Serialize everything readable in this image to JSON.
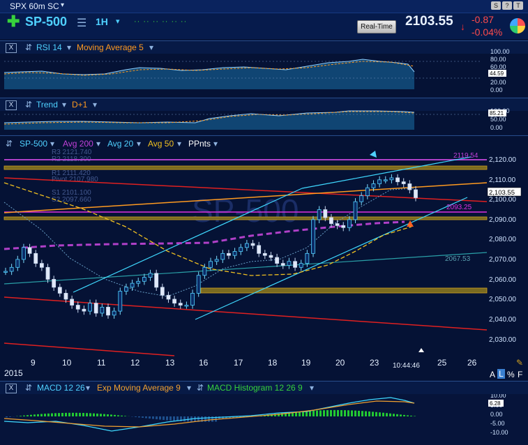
{
  "toolbar": {
    "title": "SPX 60m SC",
    "window_buttons": [
      "S",
      "?",
      "T"
    ]
  },
  "header": {
    "symbol": "SP-500",
    "timeframe": "1H",
    "realtime_label": "Real-Time",
    "last_price": "2103.55",
    "change": "-0.87",
    "change_pct": "-0.04%"
  },
  "rsi_panel": {
    "close": "X",
    "study": "RSI 14",
    "overlay": "Moving Average 5",
    "axis_labels": [
      "100.00",
      "80.00",
      "60.00",
      "40.00",
      "20.00",
      "0.00"
    ],
    "value_badge": "44.59"
  },
  "trend_panel": {
    "close": "X",
    "study": "Trend",
    "overlay": "D+1",
    "axis_labels": [
      "100.00",
      "50.00",
      "0.00"
    ],
    "value_badge": "85.21"
  },
  "main_panel": {
    "series_label": "SP-500",
    "overlays": [
      "Avg 200",
      "Avg 20",
      "Avg 50",
      "PPnts"
    ],
    "pivot_labels": [
      "R3 2121.740",
      "R2 2118.300",
      "R1 2111.420",
      "Pivot 2107.980",
      "S1 2101.100",
      "S2 2097.660"
    ],
    "level_labels": [
      "2119.54",
      "2093.25",
      "2067.53"
    ],
    "watermark": "SP-500",
    "axis_labels": [
      "2,120.00",
      "2,110.00",
      "2,100.00",
      "2,090.00",
      "2,080.00",
      "2,070.00",
      "2,060.00",
      "2,050.00",
      "2,040.00",
      "2,030.00"
    ],
    "price_badge": "2,103.55"
  },
  "xaxis": {
    "dates": [
      "9",
      "10",
      "11",
      "12",
      "13",
      "16",
      "17",
      "18",
      "19",
      "20",
      "23",
      "25",
      "26"
    ],
    "year": "2015",
    "time": "10:44:46",
    "scale_buttons": [
      "A",
      "L",
      "%",
      "F"
    ]
  },
  "macd_panel": {
    "close": "X",
    "study": "MACD 12 26",
    "overlay1": "Exp Moving Average 9",
    "overlay2": "MACD Histogram 12 26 9",
    "axis_labels": [
      "10.00",
      "5.00",
      "0.00",
      "-5.00",
      "-10.00"
    ],
    "value_badge": "6.28"
  },
  "colors": {
    "background": "#051235",
    "up_candle": "#4fd1ff",
    "channel": "#3fd9ff",
    "avg200": "#b040c8",
    "avg50": "#f0c020",
    "pivot_red": "#e02020",
    "orange_line": "#ff9a20",
    "magenta_line": "#e030e0",
    "macd": "#3fd9ff",
    "signal": "#f0a030",
    "histogram": "#22c832",
    "negative": "#ff4b4b"
  },
  "chart_data": {
    "type": "candlestick",
    "ylim": [
      2025,
      2127
    ],
    "close_series_points": [
      2066,
      2068,
      2072,
      2078,
      2075,
      2070,
      2068,
      2062,
      2058,
      2055,
      2052,
      2049,
      2047,
      2046,
      2050,
      2045,
      2048,
      2044,
      2046,
      2056,
      2058,
      2060,
      2061,
      2063,
      2065,
      2058,
      2054,
      2052,
      2050,
      2049,
      2049,
      2055,
      2064,
      2068,
      2071,
      2072,
      2075,
      2074,
      2076,
      2078,
      2080,
      2079,
      2075,
      2074,
      2073,
      2070,
      2069,
      2071,
      2068,
      2070,
      2075,
      2092,
      2097,
      2093,
      2090,
      2089,
      2088,
      2092,
      2101,
      2104,
      2108,
      2110,
      2112,
      2112,
      2113,
      2111,
      2110,
      2107,
      2103
    ],
    "last": 2103.55
  }
}
